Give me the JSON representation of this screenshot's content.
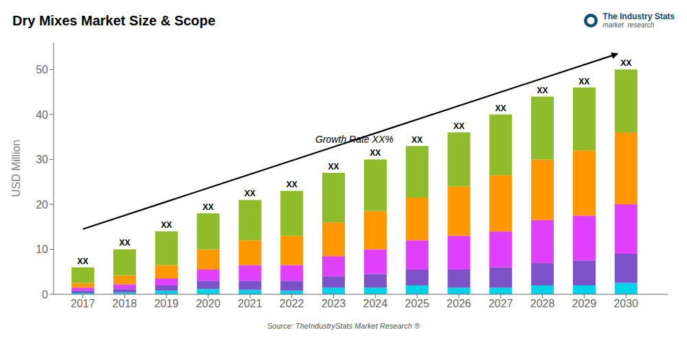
{
  "chart_data": {
    "type": "bar",
    "title": "Dry Mixes Market Size & Scope",
    "y_label": "USD Million",
    "stacked": true,
    "grid": false,
    "x": [
      2017,
      2018,
      2019,
      2020,
      2021,
      2022,
      2023,
      2024,
      2025,
      2026,
      2027,
      2028,
      2029,
      2030
    ],
    "xlim": [
      2016.3,
      2031.0
    ],
    "xticks": [
      2017,
      2018,
      2019,
      2020,
      2021,
      2022,
      2023,
      2024,
      2025,
      2026,
      2027,
      2028,
      2029,
      2030
    ],
    "ylim": [
      0,
      56
    ],
    "yticks": [
      0,
      10,
      20,
      30,
      40,
      50
    ],
    "series": [
      {
        "color": "#00d4e8",
        "values": [
          0.3,
          0.4,
          0.8,
          1.2,
          1.0,
          0.8,
          1.5,
          1.5,
          2.0,
          1.5,
          1.5,
          2.0,
          2.0,
          2.5
        ]
      },
      {
        "color": "#7c52c8",
        "values": [
          0.5,
          0.8,
          1.2,
          1.8,
          2.0,
          2.2,
          2.5,
          3.0,
          3.5,
          4.0,
          4.5,
          5.0,
          5.5,
          6.5
        ]
      },
      {
        "color": "#e040fb",
        "values": [
          0.7,
          1.0,
          1.5,
          2.5,
          3.5,
          3.5,
          4.5,
          5.5,
          6.5,
          7.5,
          8.0,
          9.5,
          10.0,
          11.0
        ]
      },
      {
        "color": "#ff9800",
        "values": [
          1.0,
          2.0,
          3.0,
          4.5,
          5.5,
          6.5,
          7.5,
          8.5,
          9.5,
          11.0,
          12.5,
          13.5,
          14.5,
          16.0
        ]
      },
      {
        "color": "#8fbc2a",
        "values": [
          3.5,
          5.8,
          7.5,
          8.0,
          9.0,
          10.0,
          11.0,
          11.5,
          11.5,
          12.0,
          13.5,
          14.0,
          14.0,
          14.0
        ]
      }
    ],
    "annotations": [
      {
        "text": "XX",
        "x": 2017,
        "y": 6
      },
      {
        "text": "XX",
        "x": 2018,
        "y": 10
      },
      {
        "text": "XX",
        "x": 2019,
        "y": 14
      },
      {
        "text": "XX",
        "x": 2020,
        "y": 18
      },
      {
        "text": "XX",
        "x": 2021,
        "y": 21
      },
      {
        "text": "XX",
        "x": 2022,
        "y": 23
      },
      {
        "text": "XX",
        "x": 2023,
        "y": 27
      },
      {
        "text": "XX",
        "x": 2024,
        "y": 30
      },
      {
        "text": "XX",
        "x": 2025,
        "y": 33
      },
      {
        "text": "XX",
        "x": 2026,
        "y": 36
      },
      {
        "text": "XX",
        "x": 2027,
        "y": 40
      },
      {
        "text": "XX",
        "x": 2028,
        "y": 44
      },
      {
        "text": "XX",
        "x": 2029,
        "y": 46
      },
      {
        "text": "XX",
        "x": 2030,
        "y": 50
      },
      {
        "text": "Growth Rate XX%",
        "x": 2023.5,
        "y": 33.0,
        "italic": true
      }
    ],
    "arrow": {
      "start": [
        2017.0,
        14.5
      ],
      "end": [
        2029.8,
        53.5
      ]
    },
    "source": "Source: TheIndustryStats Market Research ®",
    "logo": {
      "name": "The Industry Stats",
      "tagline": "market  research"
    }
  }
}
